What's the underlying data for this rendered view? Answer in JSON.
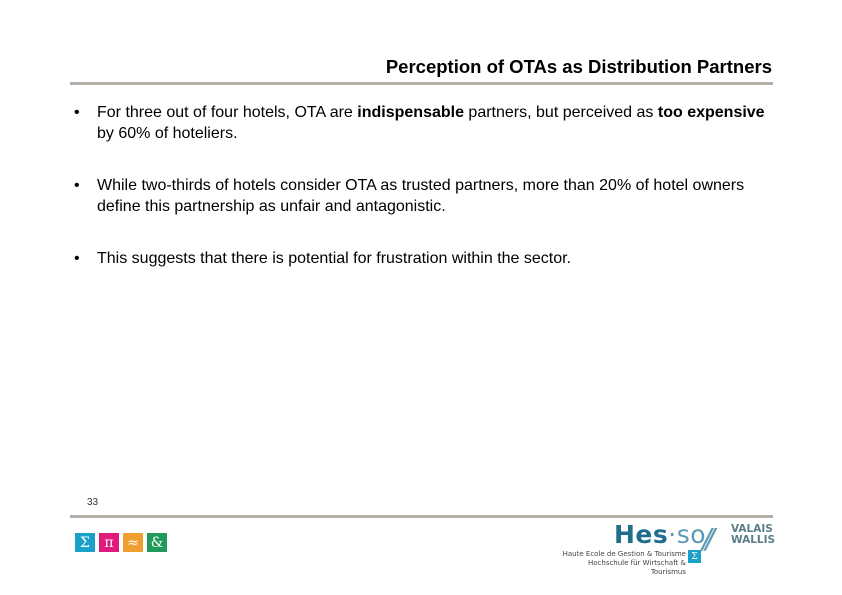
{
  "slide": {
    "title": "Perception of OTAs as Distribution Partners",
    "page_number": "33"
  },
  "bullets": [
    {
      "bullet": "•",
      "t1": "For three out of four hotels, OTA are ",
      "b1": "indispensable",
      "t2": " partners, but perceived as ",
      "b2": "too expensive",
      "t3": " by 60% of hoteliers."
    },
    {
      "bullet": "•",
      "text": "While two-thirds of hotels consider OTA as trusted partners, more than 20% of hotel owners define this partnership as unfair and antagonistic."
    },
    {
      "bullet": "•",
      "text": "This suggests that there is potential for frustration within the sector."
    }
  ],
  "footer": {
    "symbols": [
      {
        "glyph": "Σ",
        "color": "#1aa1c7"
      },
      {
        "glyph": "π",
        "color": "#e0197d"
      },
      {
        "glyph": "≈",
        "color": "#f0a030"
      },
      {
        "glyph": "&",
        "color": "#1f9a5a"
      }
    ],
    "logo": {
      "hes": "Hes",
      "dot": "·",
      "so": "so",
      "slashes": "//",
      "valais": "VALAIS",
      "wallis": "WALLIS",
      "school_fr": "Haute Ecole de Gestion & Tourisme",
      "school_de": "Hochschule für Wirtschaft & Tourismus",
      "sigma": "Σ"
    }
  }
}
